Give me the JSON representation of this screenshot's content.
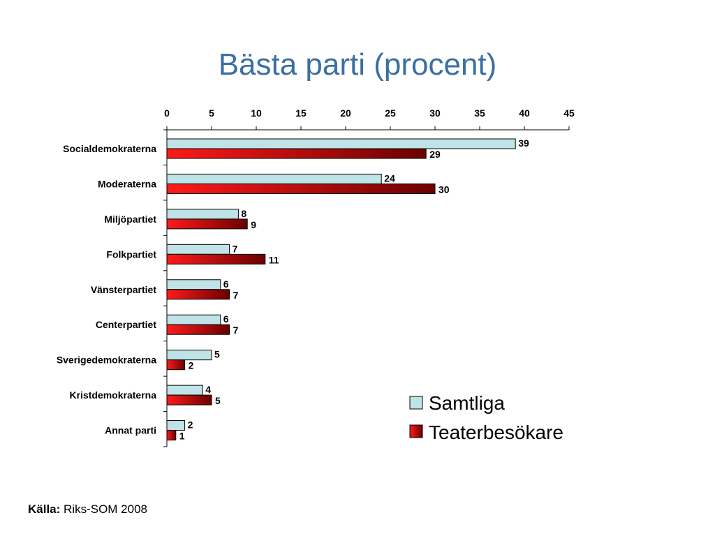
{
  "title": "Bästa parti (procent)",
  "source": {
    "label": "Källa:",
    "text": " Riks-SOM 2008"
  },
  "colors": {
    "series1": "#bfe3e6",
    "series2_light": "#ff1a1a",
    "series2_dark": "#6b0000",
    "title": "#3a6fa3"
  },
  "chart_data": {
    "type": "bar",
    "orientation": "horizontal",
    "categories": [
      "Socialdemokraterna",
      "Moderaterna",
      "Miljöpartiet",
      "Folkpartiet",
      "Vänsterpartiet",
      "Centerpartiet",
      "Sverigedemokraterna",
      "Kristdemokraterna",
      "Annat parti"
    ],
    "series": [
      {
        "name": "Samtliga",
        "values": [
          39,
          24,
          8,
          7,
          6,
          6,
          5,
          4,
          2
        ]
      },
      {
        "name": "Teaterbesökare",
        "values": [
          29,
          30,
          9,
          11,
          7,
          7,
          2,
          5,
          1
        ]
      }
    ],
    "xlim": [
      0,
      45
    ],
    "xticks": [
      0,
      5,
      10,
      15,
      20,
      25,
      30,
      35,
      40,
      45
    ],
    "axis_position": "top",
    "legend_position": "bottom-right",
    "grid": false
  }
}
